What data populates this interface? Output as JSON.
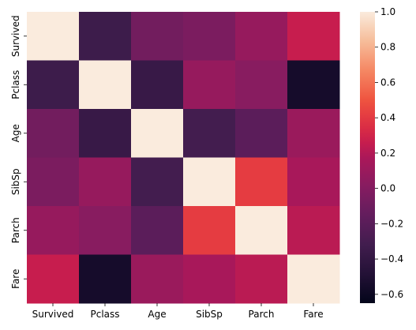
{
  "chart_data": {
    "type": "heatmap",
    "rows": [
      "Survived",
      "Pclass",
      "Age",
      "SibSp",
      "Parch",
      "Fare"
    ],
    "columns": [
      "Survived",
      "Pclass",
      "Age",
      "SibSp",
      "Parch",
      "Fare"
    ],
    "values": [
      [
        1.0,
        -0.34,
        -0.08,
        -0.04,
        0.08,
        0.26
      ],
      [
        -0.34,
        1.0,
        -0.37,
        0.08,
        0.02,
        -0.55
      ],
      [
        -0.08,
        -0.37,
        1.0,
        -0.31,
        -0.19,
        0.1
      ],
      [
        -0.04,
        0.08,
        -0.31,
        1.0,
        0.41,
        0.16
      ],
      [
        0.08,
        0.02,
        -0.19,
        0.41,
        1.0,
        0.22
      ],
      [
        0.26,
        -0.55,
        0.1,
        0.16,
        0.22,
        1.0
      ]
    ],
    "colorbar": {
      "range": [
        -0.65,
        1.0
      ],
      "ticks": [
        -0.6,
        -0.4,
        -0.2,
        0.0,
        0.2,
        0.4,
        0.6,
        0.8,
        1.0
      ],
      "tick_labels": [
        "−0.6",
        "−0.4",
        "−0.2",
        "0.0",
        "0.2",
        "0.4",
        "0.6",
        "0.8",
        "1.0"
      ],
      "colormap": "rocket",
      "position": "right"
    },
    "title": "",
    "xlabel": "",
    "ylabel": ""
  }
}
